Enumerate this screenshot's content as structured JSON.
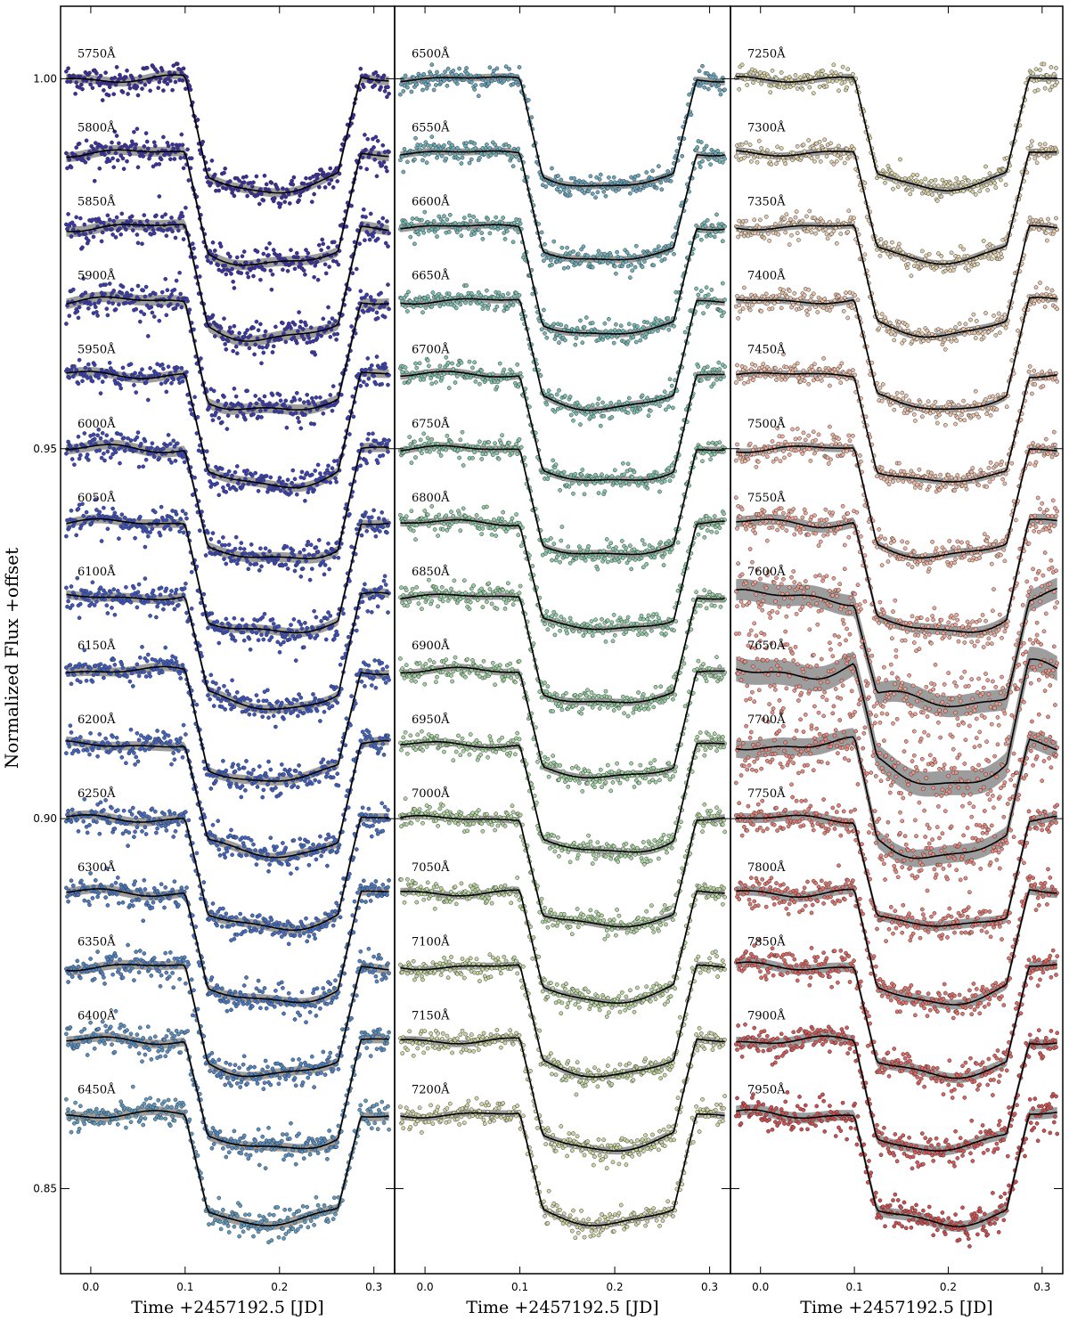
{
  "chart_data": {
    "type": "scatter",
    "ylabel": "Normalized Flux +offset",
    "y_ticks": [
      "1.00",
      "0.95",
      "0.90",
      "0.85"
    ],
    "y_tick_values": [
      1.0,
      0.95,
      0.9,
      0.85
    ],
    "ylim": [
      0.8385,
      1.0098
    ],
    "offset_step": 0.01,
    "transit": {
      "ingress_start": 0.1,
      "ingress_end": 0.124,
      "egress_start": 0.262,
      "egress_end": 0.286,
      "center": 0.193
    },
    "panels": [
      {
        "xlabel": "Time +2457192.5 [JD]",
        "x_ticks": [
          "0.0",
          "0.1",
          "0.2",
          "0.3"
        ],
        "x_tick_values": [
          0.0,
          0.1,
          0.2,
          0.3
        ],
        "xlim": [
          -0.032,
          0.322
        ],
        "series": [
          {
            "name": "5750Å",
            "baseline": 1.0,
            "depth": 0.0151,
            "noise": 0.001,
            "color": "#3b2da0"
          },
          {
            "name": "5800Å",
            "baseline": 0.99,
            "depth": 0.0152,
            "noise": 0.0011,
            "color": "#3a31a6"
          },
          {
            "name": "5850Å",
            "baseline": 0.98,
            "depth": 0.0152,
            "noise": 0.0012,
            "color": "#3a36ac"
          },
          {
            "name": "5900Å",
            "baseline": 0.97,
            "depth": 0.0151,
            "noise": 0.0012,
            "color": "#3a3bb1"
          },
          {
            "name": "5950Å",
            "baseline": 0.96,
            "depth": 0.015,
            "noise": 0.001,
            "color": "#3a41b6"
          },
          {
            "name": "6000Å",
            "baseline": 0.95,
            "depth": 0.0151,
            "noise": 0.0011,
            "color": "#3a47ba"
          },
          {
            "name": "6050Å",
            "baseline": 0.94,
            "depth": 0.015,
            "noise": 0.001,
            "color": "#3b4ebe"
          },
          {
            "name": "6100Å",
            "baseline": 0.93,
            "depth": 0.015,
            "noise": 0.001,
            "color": "#3c55c1"
          },
          {
            "name": "6150Å",
            "baseline": 0.92,
            "depth": 0.0149,
            "noise": 0.001,
            "color": "#3e5dc3"
          },
          {
            "name": "6200Å",
            "baseline": 0.91,
            "depth": 0.0149,
            "noise": 0.001,
            "color": "#4166c5"
          },
          {
            "name": "6250Å",
            "baseline": 0.9,
            "depth": 0.0148,
            "noise": 0.001,
            "color": "#456fc6"
          },
          {
            "name": "6300Å",
            "baseline": 0.89,
            "depth": 0.0148,
            "noise": 0.001,
            "color": "#4a79c6"
          },
          {
            "name": "6350Å",
            "baseline": 0.88,
            "depth": 0.0147,
            "noise": 0.001,
            "color": "#5084c6"
          },
          {
            "name": "6400Å",
            "baseline": 0.87,
            "depth": 0.0147,
            "noise": 0.001,
            "color": "#578fc4"
          },
          {
            "name": "6450Å",
            "baseline": 0.86,
            "depth": 0.0147,
            "noise": 0.001,
            "color": "#5f9bc2"
          }
        ]
      },
      {
        "xlabel": "Time +2457192.5 [JD]",
        "x_ticks": [
          "0.0",
          "0.1",
          "0.2",
          "0.3"
        ],
        "x_tick_values": [
          0.0,
          0.1,
          0.2,
          0.3
        ],
        "xlim": [
          -0.032,
          0.322
        ],
        "series": [
          {
            "name": "6500Å",
            "baseline": 1.0,
            "depth": 0.0147,
            "noise": 0.0008,
            "color": "#68a7bf"
          },
          {
            "name": "6550Å",
            "baseline": 0.99,
            "depth": 0.0147,
            "noise": 0.0008,
            "color": "#6eb0bb"
          },
          {
            "name": "6600Å",
            "baseline": 0.98,
            "depth": 0.0147,
            "noise": 0.0008,
            "color": "#74b8b6"
          },
          {
            "name": "6650Å",
            "baseline": 0.97,
            "depth": 0.0146,
            "noise": 0.0008,
            "color": "#7bbfb2"
          },
          {
            "name": "6700Å",
            "baseline": 0.96,
            "depth": 0.0146,
            "noise": 0.0008,
            "color": "#82c4ad"
          },
          {
            "name": "6750Å",
            "baseline": 0.95,
            "depth": 0.0146,
            "noise": 0.0008,
            "color": "#89c9a9"
          },
          {
            "name": "6800Å",
            "baseline": 0.94,
            "depth": 0.0146,
            "noise": 0.0008,
            "color": "#90cda6"
          },
          {
            "name": "6850Å",
            "baseline": 0.93,
            "depth": 0.0146,
            "noise": 0.0008,
            "color": "#98d0a3"
          },
          {
            "name": "6900Å",
            "baseline": 0.92,
            "depth": 0.0146,
            "noise": 0.0008,
            "color": "#a0d3a1"
          },
          {
            "name": "6950Å",
            "baseline": 0.91,
            "depth": 0.0146,
            "noise": 0.0008,
            "color": "#a8d5a0"
          },
          {
            "name": "7000Å",
            "baseline": 0.9,
            "depth": 0.0146,
            "noise": 0.0008,
            "color": "#b1d69f"
          },
          {
            "name": "7050Å",
            "baseline": 0.89,
            "depth": 0.0146,
            "noise": 0.0008,
            "color": "#bad79f"
          },
          {
            "name": "7100Å",
            "baseline": 0.88,
            "depth": 0.0146,
            "noise": 0.0008,
            "color": "#c3d7a0"
          },
          {
            "name": "7150Å",
            "baseline": 0.87,
            "depth": 0.0146,
            "noise": 0.0008,
            "color": "#ccd7a2"
          },
          {
            "name": "7200Å",
            "baseline": 0.86,
            "depth": 0.0147,
            "noise": 0.0008,
            "color": "#d4d6a5"
          }
        ]
      },
      {
        "xlabel": "Time +2457192.5 [JD]",
        "x_ticks": [
          "0.0",
          "0.1",
          "0.2",
          "0.3"
        ],
        "x_tick_values": [
          0.0,
          0.1,
          0.2,
          0.3
        ],
        "xlim": [
          -0.032,
          0.322
        ],
        "series": [
          {
            "name": "7250Å",
            "baseline": 1.0,
            "depth": 0.0147,
            "noise": 0.0008,
            "color": "#dcd4a9"
          },
          {
            "name": "7300Å",
            "baseline": 0.99,
            "depth": 0.0146,
            "noise": 0.0008,
            "color": "#e3d0ad"
          },
          {
            "name": "7350Å",
            "baseline": 0.98,
            "depth": 0.0146,
            "noise": 0.0008,
            "color": "#e8cbae"
          },
          {
            "name": "7400Å",
            "baseline": 0.97,
            "depth": 0.0146,
            "noise": 0.0008,
            "color": "#ecc4ab"
          },
          {
            "name": "7450Å",
            "baseline": 0.96,
            "depth": 0.0146,
            "noise": 0.0008,
            "color": "#eebca6"
          },
          {
            "name": "7500Å",
            "baseline": 0.95,
            "depth": 0.0146,
            "noise": 0.0009,
            "color": "#efb3a0"
          },
          {
            "name": "7550Å",
            "baseline": 0.94,
            "depth": 0.0147,
            "noise": 0.0012,
            "color": "#efa998"
          },
          {
            "name": "7600Å",
            "baseline": 0.93,
            "depth": 0.0147,
            "noise": 0.0024,
            "color": "#ee9f90"
          },
          {
            "name": "7650Å",
            "baseline": 0.92,
            "depth": 0.0148,
            "noise": 0.0028,
            "color": "#ec9487"
          },
          {
            "name": "7700Å",
            "baseline": 0.91,
            "depth": 0.0148,
            "noise": 0.002,
            "color": "#ea897e"
          },
          {
            "name": "7750Å",
            "baseline": 0.9,
            "depth": 0.0147,
            "noise": 0.0011,
            "color": "#e67d74"
          },
          {
            "name": "7800Å",
            "baseline": 0.89,
            "depth": 0.0147,
            "noise": 0.0011,
            "color": "#e2716a"
          },
          {
            "name": "7850Å",
            "baseline": 0.88,
            "depth": 0.0147,
            "noise": 0.0011,
            "color": "#de6560"
          },
          {
            "name": "7900Å",
            "baseline": 0.87,
            "depth": 0.0147,
            "noise": 0.0011,
            "color": "#d85957"
          },
          {
            "name": "7950Å",
            "baseline": 0.86,
            "depth": 0.0147,
            "noise": 0.0012,
            "color": "#d24d4e"
          }
        ]
      }
    ]
  },
  "style": {
    "band_color": "#8c8c8c",
    "model_color": "#000000",
    "point_edge_color": "#333333"
  }
}
